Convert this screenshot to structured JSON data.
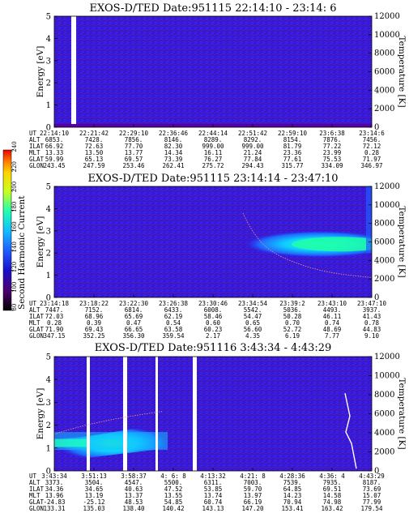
{
  "chart_data": [
    {
      "type": "heatmap",
      "title": "EXOS-D/TED   Date:951115  22:14:10 - 23:14: 6",
      "ylabel": "Energy [eV]",
      "y2label": "Temperature [K]",
      "ylim": [
        0,
        5
      ],
      "y2lim": [
        0,
        12000
      ],
      "yticks": [
        "0",
        "1",
        "2",
        "3",
        "4",
        "5"
      ],
      "y2ticks": [
        "0",
        "2000",
        "4000",
        "6000",
        "8000",
        "10000",
        "12000"
      ],
      "row_labels": [
        "UT",
        "ALT",
        "ILAT",
        "MLT",
        "GLAT",
        "GLON"
      ],
      "columns": [
        [
          "22:14:10",
          "6853.",
          "66.92",
          "13.33",
          "59.99",
          "243.45"
        ],
        [
          "22:21:42",
          "7428.",
          "72.63",
          "13.50",
          "65.13",
          "247.59"
        ],
        [
          "22:29:10",
          "7856.",
          "77.70",
          "13.77",
          "69.57",
          "253.46"
        ],
        [
          "22:36:46",
          "8146.",
          "82.30",
          "14.34",
          "73.39",
          "262.41"
        ],
        [
          "22:44:14",
          "8289.",
          "999.00",
          "16.11",
          "76.27",
          "275.72"
        ],
        [
          "22:51:42",
          "8292.",
          "999.00",
          "21.24",
          "77.84",
          "294.43"
        ],
        [
          "22:59:10",
          "8154.",
          "81.79",
          "23.36",
          "77.61",
          "315.77"
        ],
        [
          "23:6:38",
          "7876.",
          "77.22",
          "23.99",
          "75.53",
          "334.09"
        ],
        [
          "23:14:6",
          "7456.",
          "72.12",
          "0.28",
          "71.97",
          "346.97"
        ]
      ]
    },
    {
      "type": "heatmap",
      "title": "EXOS-D/TED   Date:951115  23:14:14 - 23:47:10",
      "ylabel": "Energy [eV]",
      "y2label": "Temperature [K]",
      "ylim": [
        0,
        5
      ],
      "y2lim": [
        0,
        12000
      ],
      "yticks": [
        "0",
        "1",
        "2",
        "3",
        "4",
        "5"
      ],
      "y2ticks": [
        "0",
        "2000",
        "4000",
        "6000",
        "8000",
        "10000",
        "12000"
      ],
      "row_labels": [
        "UT",
        "ALT",
        "ILAT",
        "MLT",
        "GLAT",
        "GLON"
      ],
      "columns": [
        [
          "23:14:18",
          "7447.",
          "72.03",
          "0.28",
          "71.90",
          "347.15"
        ],
        [
          "23:18:22",
          "7152.",
          "68.96",
          "0.39",
          "69.43",
          "352.25"
        ],
        [
          "23:22:30",
          "6814.",
          "65.69",
          "0.47",
          "66.65",
          "356.30"
        ],
        [
          "23:26:38",
          "6433.",
          "62.19",
          "0.54",
          "63.58",
          "359.54"
        ],
        [
          "23:30:46",
          "6008.",
          "58.46",
          "0.60",
          "60.23",
          "2.17"
        ],
        [
          "23:34:54",
          "5542.",
          "54.47",
          "0.65",
          "56.60",
          "4.35"
        ],
        [
          "23:39:2",
          "5036.",
          "50.28",
          "0.70",
          "52.72",
          "6.19"
        ],
        [
          "23:43:10",
          "4493.",
          "46.11",
          "0.74",
          "48.69",
          "7.77"
        ],
        [
          "23:47:10",
          "3937.",
          "41.43",
          "0.78",
          "44.83",
          "9.10"
        ]
      ]
    },
    {
      "type": "heatmap",
      "title": "EXOS-D/TED   Date:951116  3:43:34 - 4:43:29",
      "ylabel": "Energy [eV]",
      "y2label": "Temperature [K]",
      "ylim": [
        0,
        5
      ],
      "y2lim": [
        0,
        12000
      ],
      "yticks": [
        "0",
        "1",
        "2",
        "3",
        "4",
        "5"
      ],
      "y2ticks": [
        "0",
        "2000",
        "4000",
        "6000",
        "8000",
        "10000",
        "12000"
      ],
      "row_labels": [
        "UT",
        "ALT",
        "ILAT",
        "MLT",
        "GLAT",
        "GLON"
      ],
      "columns": [
        [
          "3:43:34",
          "3373.",
          "34.36",
          "13.96",
          "-24.83",
          "133.31"
        ],
        [
          "3:51:13",
          "3504.",
          "34.65",
          "13.19",
          "-25.12",
          "135.03"
        ],
        [
          "3:58:37",
          "4547.",
          "40.63",
          "13.37",
          "48.53",
          "138.40"
        ],
        [
          "4: 6: 8",
          "5500.",
          "47.52",
          "13.55",
          "54.85",
          "140.42"
        ],
        [
          "4:13:32",
          "6311.",
          "53.85",
          "13.74",
          "60.74",
          "143.13"
        ],
        [
          "4:21: 8",
          "7003.",
          "59.70",
          "13.97",
          "66.19",
          "147.20"
        ],
        [
          "4:28:36",
          "7539.",
          "64.85",
          "14.23",
          "70.94",
          "153.41"
        ],
        [
          "4:36: 4",
          "7935.",
          "69.51",
          "14.58",
          "74.98",
          "163.42"
        ],
        [
          "4:43:29",
          "8187.",
          "73.69",
          "15.07",
          "77.99",
          "179.54"
        ]
      ]
    }
  ],
  "colorbar": {
    "label": "Second Harmonic Current",
    "ticks": [
      "80",
      "100",
      "120",
      "140",
      "160",
      "180",
      "200",
      "220",
      "240"
    ],
    "colors": [
      "#000000",
      "#4b006e",
      "#1a10c8",
      "#1f5cff",
      "#12c0ff",
      "#22ffb0",
      "#c8ff1e",
      "#ffd400",
      "#ff7a00",
      "#e60000"
    ]
  }
}
